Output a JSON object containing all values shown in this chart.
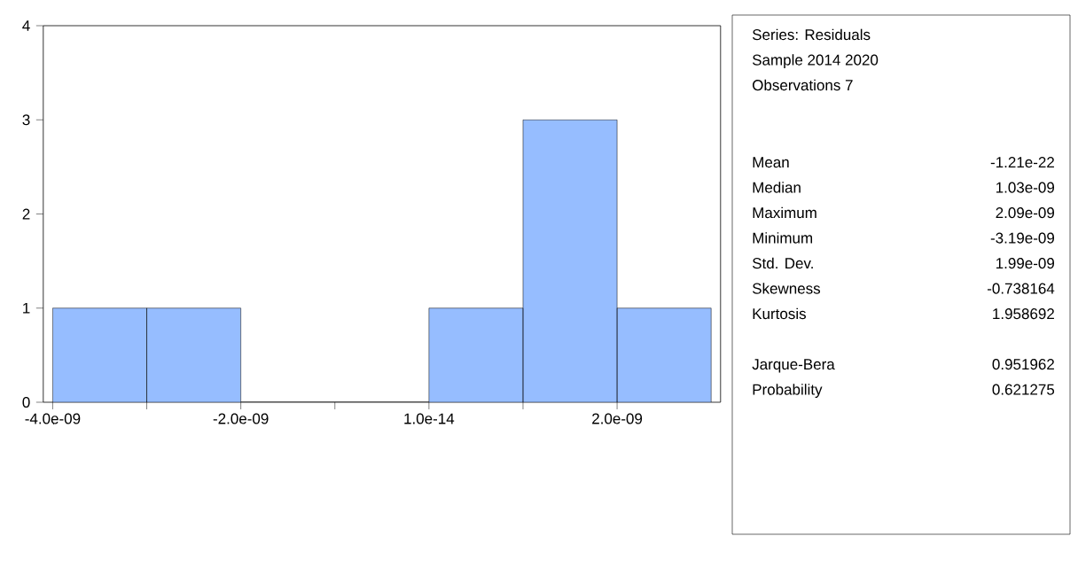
{
  "chart_data": {
    "type": "histogram",
    "bins": [
      -4e-09,
      -3e-09,
      -2e-09,
      -1e-09,
      0,
      1e-09,
      2e-09,
      3e-09
    ],
    "values": [
      1,
      1,
      0,
      0,
      1,
      3,
      1
    ],
    "color": "#96bdff",
    "xlim": [
      -4.1e-09,
      3.1e-09
    ],
    "ylim": [
      0,
      4
    ],
    "xticks": [
      {
        "value": -4e-09,
        "label": "-4.0e-09"
      },
      {
        "value": -3e-09,
        "label": null
      },
      {
        "value": -2e-09,
        "label": "-2.0e-09"
      },
      {
        "value": -1e-09,
        "label": null
      },
      {
        "value": 1e-14,
        "label": "1.0e-14"
      },
      {
        "value": 1e-09,
        "label": null
      },
      {
        "value": 2e-09,
        "label": "2.0e-09"
      }
    ],
    "yticks": [
      0,
      1,
      2,
      3,
      4
    ],
    "grid": false,
    "annotations": [
      "Series: Residuals",
      "Sample 2014 2020",
      "Observations 7",
      "Mean",
      "-1.21e-22",
      "Median",
      "1.03e-09",
      "Maximum",
      "2.09e-09",
      "Minimum",
      "-3.19e-09",
      "Std. Dev.",
      "1.99e-09",
      "Skewness",
      "-0.738164",
      "Kurtosis",
      "1.958692",
      "Jarque-Bera",
      "0.951962",
      "Probability",
      "0.621275"
    ]
  }
}
